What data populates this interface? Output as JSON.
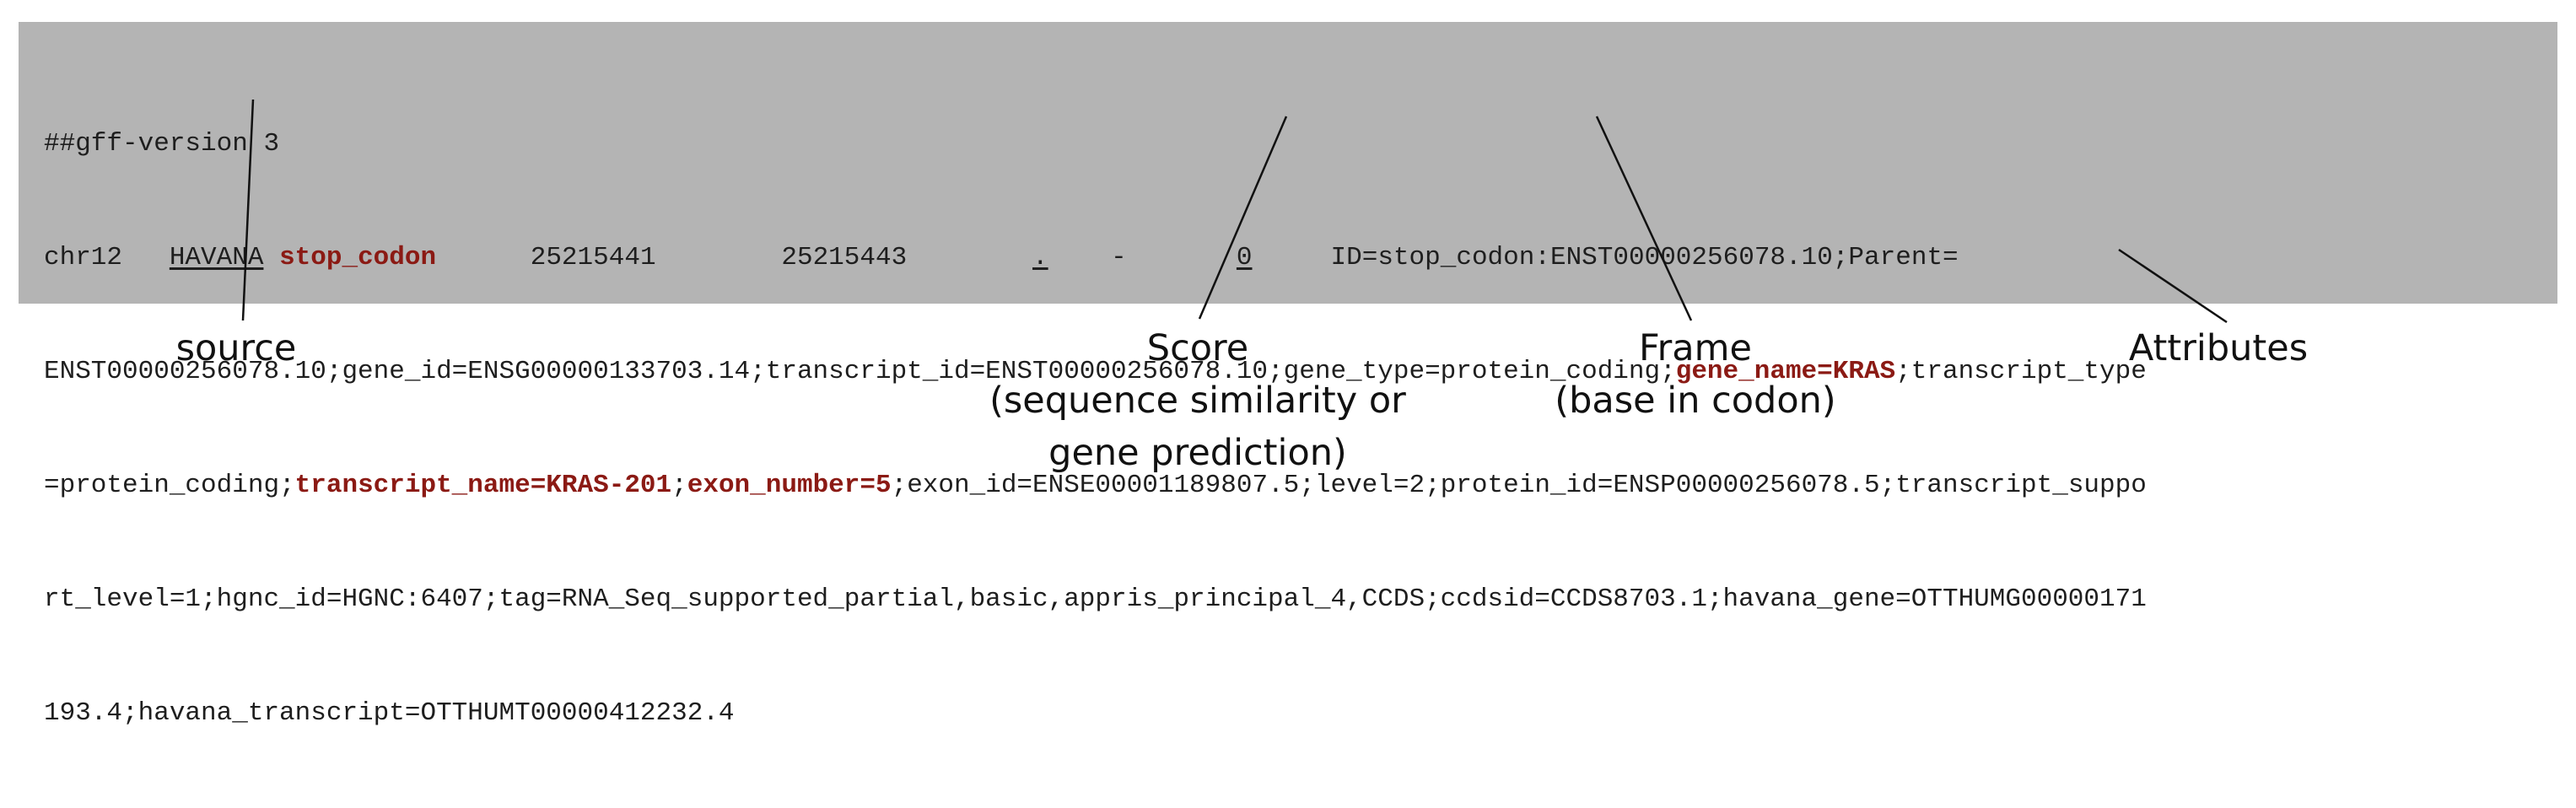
{
  "gff_record": {
    "line0": "##gff-version 3",
    "seqid": "chr12",
    "source": "HAVANA",
    "feature_type": "stop_codon",
    "start": "25215441",
    "end": "25215443",
    "score": ".",
    "strand": "-",
    "frame": "0",
    "attr_a": "ID=stop_codon:ENST00000256078.10;Parent=",
    "line2_a": "ENST00000256078.10;gene_id=ENSG00000133703.14;transcript_id=ENST00000256078.10;gene_type=protein_coding;",
    "line2_hl": "gene_name=KRAS",
    "line2_b": ";transcript_type",
    "line3_a": "=protein_coding;",
    "line3_hl1": "transcript_name=KRAS-201",
    "line3_sep": ";",
    "line3_hl2": "exon_number=5",
    "line3_b": ";exon_id=ENSE00001189807.5;level=2;protein_id=ENSP00000256078.5;transcript_suppo",
    "line4": "rt_level=1;hgnc_id=HGNC:6407;tag=RNA_Seq_supported_partial,basic,appris_principal_4,CCDS;ccdsid=CCDS8703.1;havana_gene=OTTHUMG00000171",
    "line5": "193.4;havana_transcript=OTTHUMT00000412232.4"
  },
  "labels": {
    "source": "source",
    "score_l1": "Score",
    "score_l2": "(sequence similarity or",
    "score_l3": "gene prediction)",
    "frame_l1": "Frame",
    "frame_l2": "(base in codon)",
    "attributes": "Attributes"
  },
  "colors": {
    "box_background": "#b4b4b4",
    "highlight": "#8b1a14",
    "text": "#1e1e1e"
  }
}
